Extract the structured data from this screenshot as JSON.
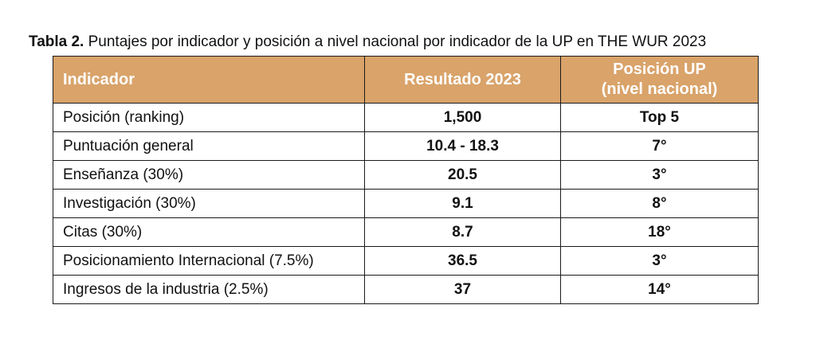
{
  "caption": {
    "label": "Tabla 2.",
    "text": "Puntajes por indicador y posición a nivel nacional por indicador de la UP en THE WUR 2023"
  },
  "table": {
    "header_bg": "#d9a36a",
    "header_text_color": "#ffffff",
    "headers": {
      "indicator": "Indicador",
      "result": "Resultado 2023",
      "position_line1": "Posición UP",
      "position_line2": "(nivel nacional)"
    },
    "rows": [
      {
        "indicator": "Posición (ranking)",
        "result": "1,500",
        "position": "Top 5"
      },
      {
        "indicator": "Puntuación general",
        "result": "10.4 - 18.3",
        "position": "7°"
      },
      {
        "indicator": "Enseñanza (30%)",
        "result": "20.5",
        "position": "3°"
      },
      {
        "indicator": "Investigación (30%)",
        "result": "9.1",
        "position": "8°"
      },
      {
        "indicator": "Citas (30%)",
        "result": "8.7",
        "position": "18°"
      },
      {
        "indicator": "Posicionamiento Internacional (7.5%)",
        "result": "36.5",
        "position": "3°"
      },
      {
        "indicator": "Ingresos de la industria (2.5%)",
        "result": "37",
        "position": "14°"
      }
    ]
  }
}
